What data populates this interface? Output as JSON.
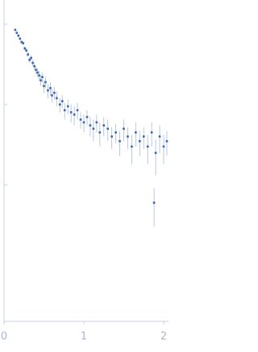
{
  "chart_data": {
    "type": "scatter",
    "color": "#3a66b0",
    "log_y": true,
    "xlim": [
      0,
      2.05
    ],
    "xticks": [
      0,
      1,
      2
    ],
    "ylim": [
      0.0002,
      2
    ],
    "yticks": [
      0.01,
      0.1,
      1
    ],
    "x": [
      0.14,
      0.16,
      0.18,
      0.2,
      0.22,
      0.24,
      0.26,
      0.28,
      0.3,
      0.32,
      0.34,
      0.36,
      0.38,
      0.4,
      0.42,
      0.44,
      0.46,
      0.48,
      0.5,
      0.52,
      0.55,
      0.58,
      0.6,
      0.63,
      0.66,
      0.7,
      0.73,
      0.76,
      0.8,
      0.84,
      0.88,
      0.92,
      0.96,
      1.0,
      1.04,
      1.08,
      1.12,
      1.16,
      1.2,
      1.25,
      1.3,
      1.35,
      1.4,
      1.45,
      1.5,
      1.55,
      1.6,
      1.65,
      1.7,
      1.75,
      1.8,
      1.85,
      1.88,
      1.9,
      1.95,
      2.0,
      2.04
    ],
    "values": [
      0.85,
      0.78,
      0.72,
      0.66,
      0.6,
      0.58,
      0.5,
      0.47,
      0.42,
      0.36,
      0.38,
      0.33,
      0.3,
      0.27,
      0.25,
      0.23,
      0.2,
      0.22,
      0.17,
      0.19,
      0.15,
      0.16,
      0.13,
      0.14,
      0.12,
      0.1,
      0.11,
      0.085,
      0.095,
      0.08,
      0.075,
      0.085,
      0.065,
      0.06,
      0.07,
      0.055,
      0.05,
      0.06,
      0.045,
      0.055,
      0.05,
      0.04,
      0.045,
      0.035,
      0.05,
      0.04,
      0.03,
      0.045,
      0.035,
      0.04,
      0.03,
      0.045,
      0.006,
      0.025,
      0.04,
      0.03,
      0.035
    ],
    "errors": [
      0.03,
      0.03,
      0.03,
      0.03,
      0.03,
      0.03,
      0.03,
      0.03,
      0.03,
      0.03,
      0.03,
      0.03,
      0.03,
      0.03,
      0.03,
      0.03,
      0.03,
      0.03,
      0.03,
      0.03,
      0.03,
      0.03,
      0.025,
      0.025,
      0.025,
      0.02,
      0.02,
      0.02,
      0.02,
      0.02,
      0.02,
      0.02,
      0.015,
      0.015,
      0.015,
      0.015,
      0.015,
      0.015,
      0.015,
      0.015,
      0.015,
      0.012,
      0.012,
      0.012,
      0.015,
      0.012,
      0.012,
      0.015,
      0.012,
      0.012,
      0.012,
      0.015,
      0.003,
      0.012,
      0.015,
      0.012,
      0.012
    ]
  }
}
